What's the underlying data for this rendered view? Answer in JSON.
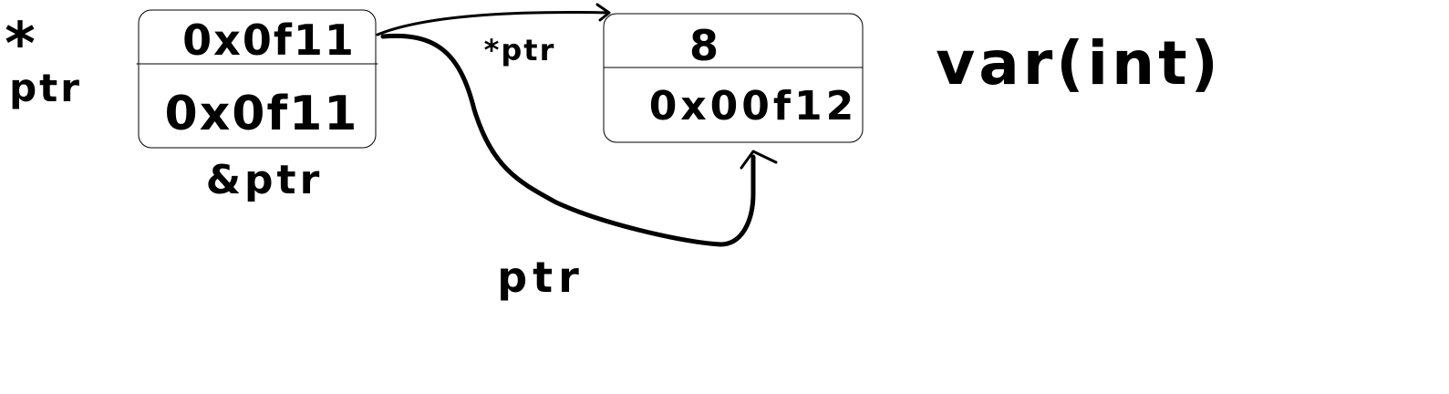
{
  "diagram": {
    "left_cell": {
      "top_value": "0x0f11",
      "bottom_value": "0x0f11"
    },
    "right_cell": {
      "top_value": "8",
      "bottom_value": "0x00f12"
    },
    "labels": {
      "star_marker": "*",
      "ptr_left": "ptr",
      "amp_ptr": "&ptr",
      "star_ptr": "*ptr",
      "ptr_bottom": "ptr",
      "var_decl": "var(int)"
    },
    "colors": {
      "ink": "#000000",
      "background": "#ffffff"
    }
  }
}
